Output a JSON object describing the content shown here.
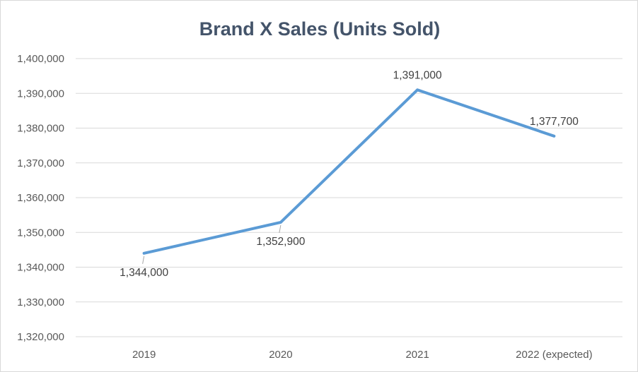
{
  "chart_data": {
    "type": "line",
    "title": "Brand X Sales (Units Sold)",
    "xlabel": "",
    "ylabel": "",
    "categories": [
      "2019",
      "2020",
      "2021",
      "2022 (expected)"
    ],
    "series": [
      {
        "values": [
          1344000,
          1352900,
          1391000,
          1377700
        ],
        "labels": [
          "1,344,000",
          "1,352,900",
          "1,391,000",
          "1,377,700"
        ],
        "color": "#5b9bd5"
      }
    ],
    "ylim": [
      1320000,
      1400000
    ],
    "y_ticks": [
      1320000,
      1330000,
      1340000,
      1350000,
      1360000,
      1370000,
      1380000,
      1390000,
      1400000
    ],
    "y_tick_labels": [
      "1,320,000",
      "1,330,000",
      "1,340,000",
      "1,350,000",
      "1,360,000",
      "1,370,000",
      "1,380,000",
      "1,390,000",
      "1,400,000"
    ],
    "grid": true,
    "legend": "none"
  }
}
